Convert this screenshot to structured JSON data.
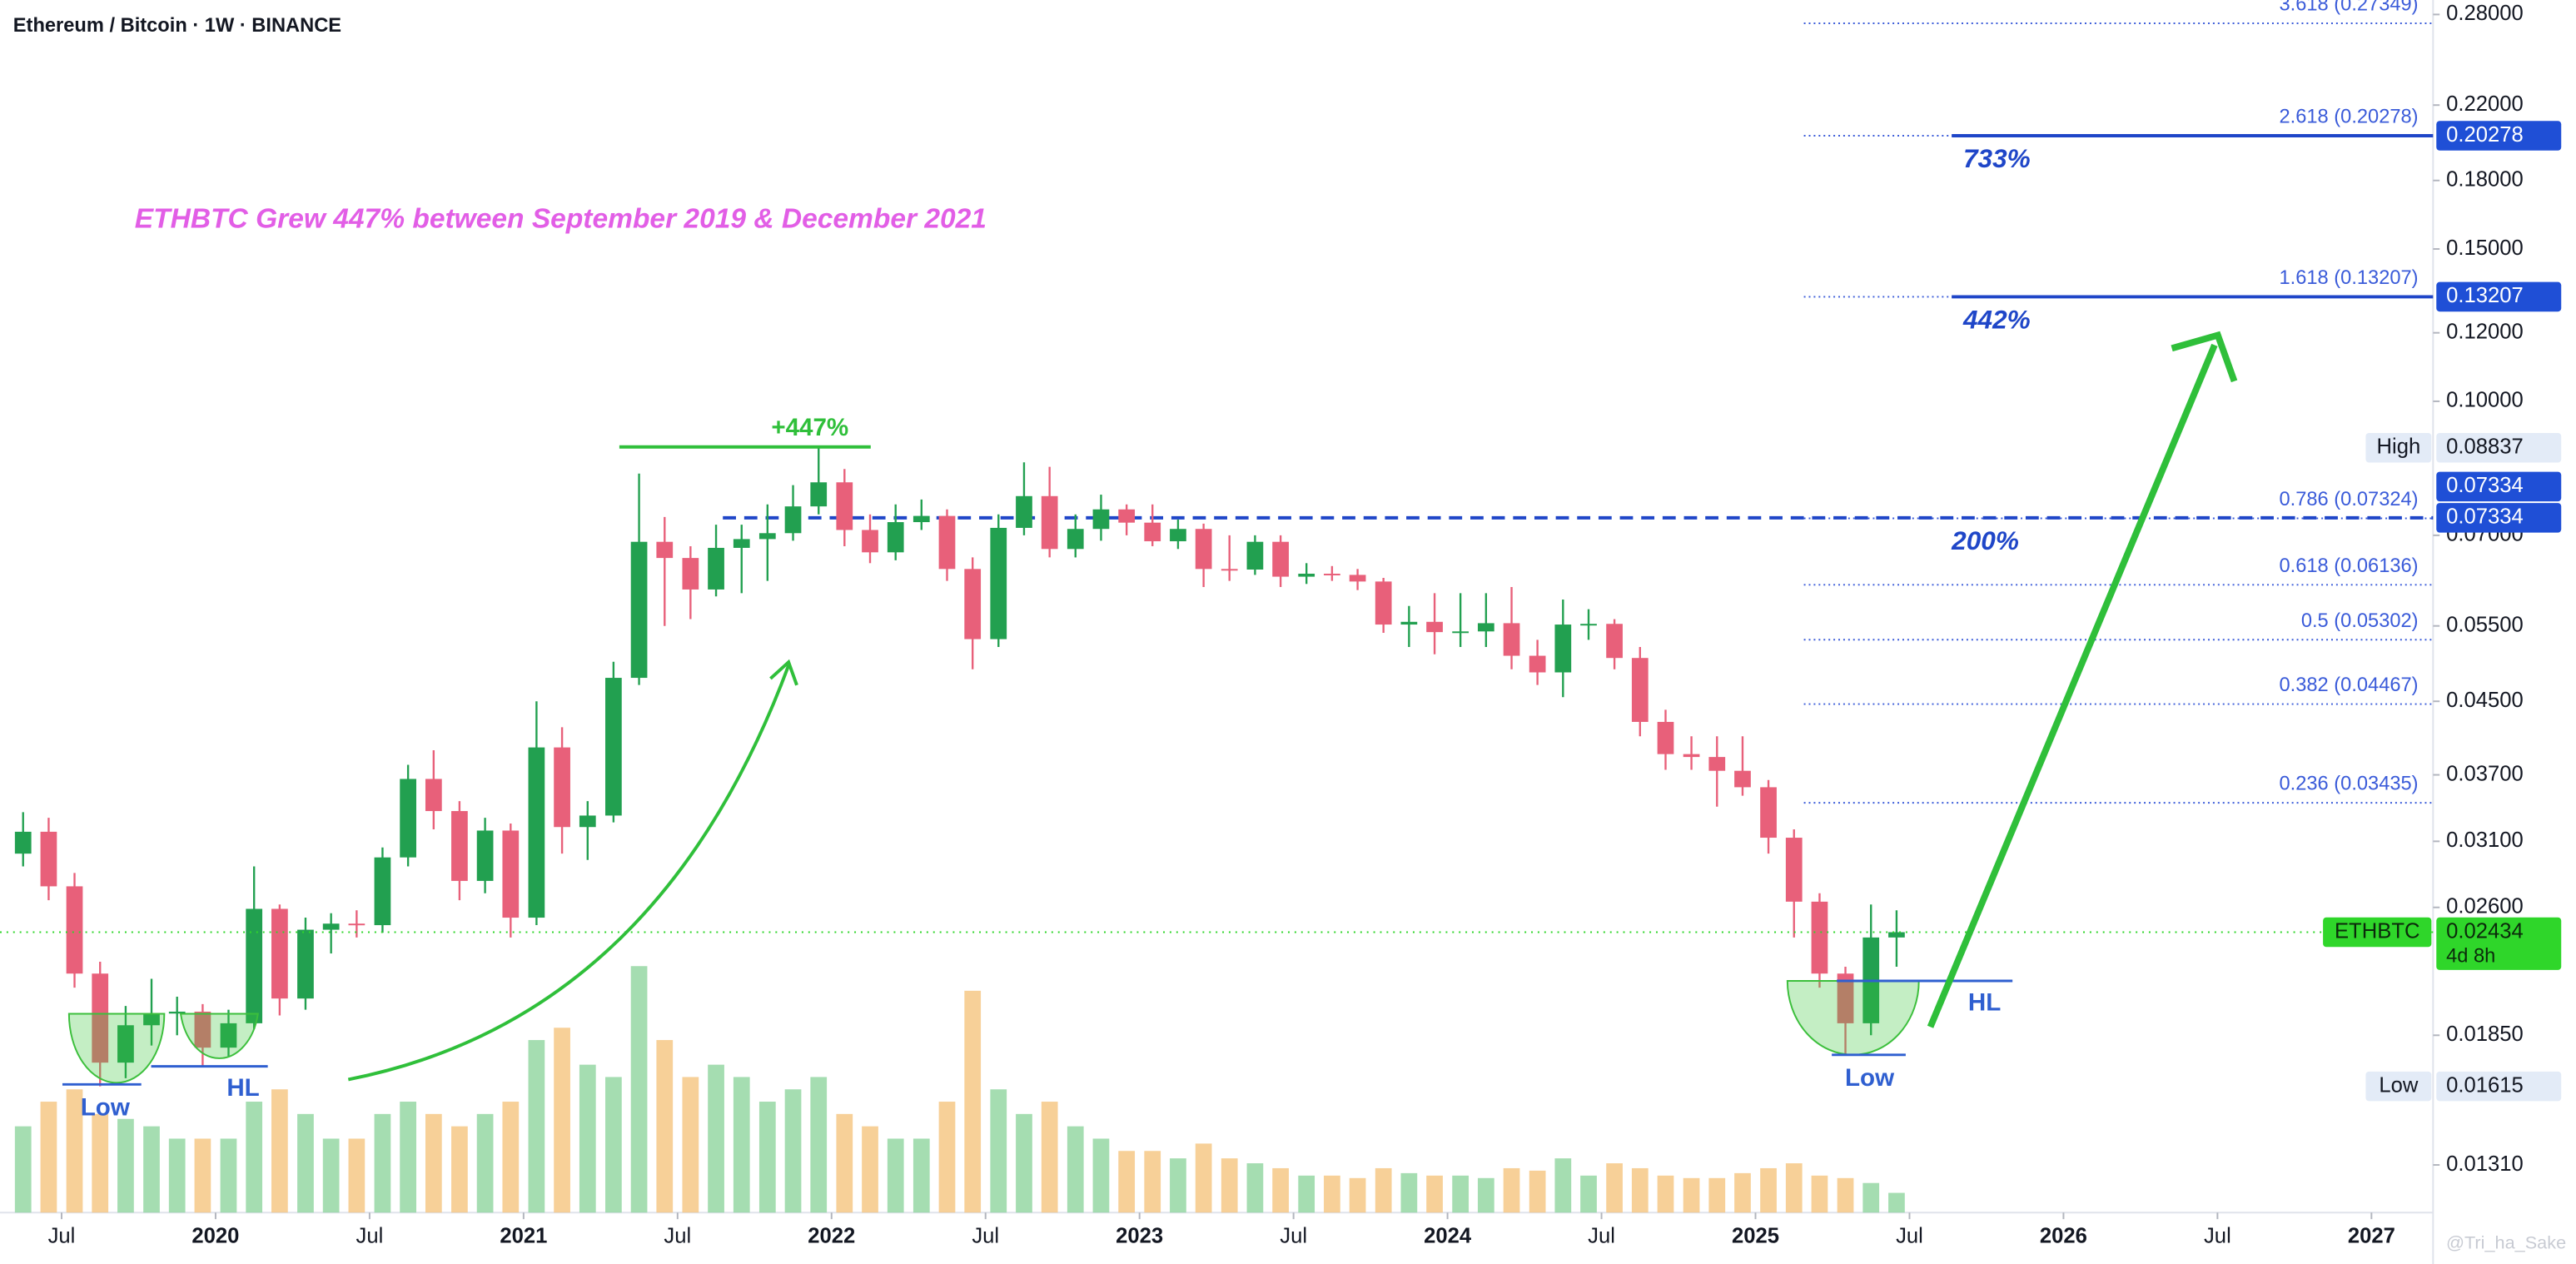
{
  "chart_data": {
    "type": "candlestick",
    "title": "Ethereum / Bitcoin · 1W · BINANCE",
    "log_scale": true,
    "up_color": "#22a050",
    "down_color": "#e8607a",
    "volume_up_color": "#8fd49e",
    "volume_down_color": "#f5c47e",
    "x": [
      2019.375,
      2019.458,
      2019.542,
      2019.625,
      2019.708,
      2019.792,
      2019.875,
      2019.958,
      2020.042,
      2020.125,
      2020.208,
      2020.292,
      2020.375,
      2020.458,
      2020.542,
      2020.625,
      2020.708,
      2020.792,
      2020.875,
      2020.958,
      2021.042,
      2021.125,
      2021.208,
      2021.292,
      2021.375,
      2021.458,
      2021.542,
      2021.625,
      2021.708,
      2021.792,
      2021.875,
      2021.958,
      2022.042,
      2022.125,
      2022.208,
      2022.292,
      2022.375,
      2022.458,
      2022.542,
      2022.625,
      2022.708,
      2022.792,
      2022.875,
      2022.958,
      2023.042,
      2023.125,
      2023.208,
      2023.292,
      2023.375,
      2023.458,
      2023.542,
      2023.625,
      2023.708,
      2023.792,
      2023.875,
      2023.958,
      2024.042,
      2024.125,
      2024.208,
      2024.292,
      2024.375,
      2024.458,
      2024.542,
      2024.625,
      2024.708,
      2024.792,
      2024.875,
      2024.958,
      2025.042,
      2025.125,
      2025.208,
      2025.292,
      2025.375,
      2025.458
    ],
    "open": [
      0.03,
      0.0318,
      0.0275,
      0.0218,
      0.0172,
      0.019,
      0.0196,
      0.0197,
      0.0179,
      0.0191,
      0.0259,
      0.0204,
      0.0245,
      0.0249,
      0.0248,
      0.0297,
      0.0366,
      0.0336,
      0.0279,
      0.0319,
      0.0253,
      0.0398,
      0.0322,
      0.0332,
      0.0479,
      0.0688,
      0.0659,
      0.0606,
      0.0677,
      0.0693,
      0.0704,
      0.0756,
      0.0806,
      0.071,
      0.0669,
      0.0725,
      0.0737,
      0.064,
      0.0531,
      0.0714,
      0.0777,
      0.0675,
      0.0712,
      0.075,
      0.0724,
      0.0689,
      0.0712,
      0.064,
      0.0639,
      0.0688,
      0.0627,
      0.0632,
      0.063,
      0.0619,
      0.0552,
      0.0556,
      0.0541,
      0.0542,
      0.0554,
      0.0508,
      0.0486,
      0.0552,
      0.0553,
      0.0505,
      0.0426,
      0.0391,
      0.0388,
      0.0374,
      0.0358,
      0.0313,
      0.0264,
      0.0218,
      0.0191,
      0.024
    ],
    "high": [
      0.0335,
      0.033,
      0.0285,
      0.0225,
      0.02,
      0.0215,
      0.0205,
      0.0201,
      0.0198,
      0.029,
      0.0262,
      0.0253,
      0.0256,
      0.0258,
      0.0305,
      0.038,
      0.0395,
      0.0345,
      0.033,
      0.0325,
      0.045,
      0.042,
      0.0345,
      0.05,
      0.0825,
      0.0735,
      0.068,
      0.072,
      0.072,
      0.076,
      0.08,
      0.08837,
      0.0835,
      0.074,
      0.076,
      0.077,
      0.075,
      0.066,
      0.074,
      0.085,
      0.084,
      0.074,
      0.078,
      0.076,
      0.076,
      0.073,
      0.0722,
      0.07,
      0.07,
      0.07,
      0.065,
      0.0645,
      0.064,
      0.0625,
      0.058,
      0.06,
      0.06,
      0.06,
      0.061,
      0.053,
      0.059,
      0.0575,
      0.056,
      0.052,
      0.044,
      0.041,
      0.041,
      0.041,
      0.0365,
      0.032,
      0.027,
      0.0222,
      0.0262,
      0.0258
    ],
    "low": [
      0.029,
      0.0265,
      0.021,
      0.01615,
      0.0165,
      0.018,
      0.0185,
      0.017,
      0.0175,
      0.0188,
      0.0195,
      0.0198,
      0.023,
      0.024,
      0.0243,
      0.029,
      0.032,
      0.0265,
      0.027,
      0.024,
      0.0248,
      0.03,
      0.0295,
      0.0326,
      0.047,
      0.055,
      0.056,
      0.0595,
      0.06,
      0.062,
      0.069,
      0.074,
      0.068,
      0.065,
      0.0655,
      0.071,
      0.062,
      0.049,
      0.052,
      0.07,
      0.066,
      0.066,
      0.069,
      0.07,
      0.068,
      0.0675,
      0.061,
      0.062,
      0.063,
      0.061,
      0.0615,
      0.062,
      0.0605,
      0.054,
      0.052,
      0.051,
      0.052,
      0.052,
      0.049,
      0.047,
      0.0455,
      0.053,
      0.049,
      0.041,
      0.0375,
      0.0375,
      0.034,
      0.035,
      0.03,
      0.024,
      0.021,
      0.0176,
      0.0185,
      0.0222
    ],
    "close": [
      0.0318,
      0.0275,
      0.0218,
      0.0172,
      0.019,
      0.0196,
      0.0197,
      0.0179,
      0.0191,
      0.0259,
      0.0204,
      0.0245,
      0.0249,
      0.0248,
      0.0297,
      0.0366,
      0.0336,
      0.0279,
      0.0319,
      0.0253,
      0.0398,
      0.0322,
      0.0332,
      0.0479,
      0.0688,
      0.0659,
      0.0606,
      0.0677,
      0.0693,
      0.0704,
      0.0756,
      0.0806,
      0.071,
      0.0669,
      0.0725,
      0.0737,
      0.064,
      0.0531,
      0.0714,
      0.0777,
      0.0675,
      0.0712,
      0.075,
      0.0724,
      0.0689,
      0.0712,
      0.064,
      0.0639,
      0.0688,
      0.0627,
      0.0632,
      0.063,
      0.0619,
      0.0552,
      0.0556,
      0.0541,
      0.0542,
      0.0554,
      0.0508,
      0.0486,
      0.0552,
      0.0553,
      0.0505,
      0.0426,
      0.0391,
      0.0388,
      0.0374,
      0.0358,
      0.0313,
      0.0264,
      0.0218,
      0.0191,
      0.024,
      0.02434
    ],
    "volume": [
      35,
      45,
      50,
      40,
      38,
      35,
      30,
      30,
      30,
      45,
      50,
      40,
      30,
      30,
      40,
      45,
      40,
      35,
      40,
      45,
      70,
      75,
      60,
      55,
      100,
      70,
      55,
      60,
      55,
      45,
      50,
      55,
      40,
      35,
      30,
      30,
      45,
      90,
      50,
      40,
      45,
      35,
      30,
      25,
      25,
      22,
      28,
      22,
      20,
      18,
      15,
      15,
      14,
      18,
      16,
      15,
      15,
      14,
      18,
      17,
      22,
      15,
      20,
      18,
      15,
      14,
      14,
      16,
      18,
      20,
      15,
      14,
      12,
      8
    ],
    "xlim": [
      2019.3,
      2027.2
    ],
    "ylim": [
      0.01154,
      0.291
    ],
    "xticks": [
      {
        "value": 2019.5,
        "label": "Jul"
      },
      2020,
      {
        "value": 2020.5,
        "label": "Jul"
      },
      2021,
      {
        "value": 2021.5,
        "label": "Jul"
      },
      2022,
      {
        "value": 2022.5,
        "label": "Jul"
      },
      2023,
      {
        "value": 2023.5,
        "label": "Jul"
      },
      2024,
      {
        "value": 2024.5,
        "label": "Jul"
      },
      2025,
      {
        "value": 2025.5,
        "label": "Jul"
      },
      2026,
      {
        "value": 2026.5,
        "label": "Jul"
      },
      2027
    ],
    "yticks": [
      {
        "value": 0.28,
        "label": "0.28000"
      },
      {
        "value": 0.22,
        "label": "0.22000"
      },
      {
        "value": 0.18,
        "label": "0.18000"
      },
      {
        "value": 0.15,
        "label": "0.15000"
      },
      {
        "value": 0.12,
        "label": "0.12000"
      },
      {
        "value": 0.1,
        "label": "0.10000"
      },
      {
        "value": 0.07,
        "label": "0.07000"
      },
      {
        "value": 0.055,
        "label": "0.05500"
      },
      {
        "value": 0.045,
        "label": "0.04500"
      },
      {
        "value": 0.037,
        "label": "0.03700"
      },
      {
        "value": 0.031,
        "label": "0.03100"
      },
      {
        "value": 0.026,
        "label": "0.02600"
      },
      {
        "value": 0.0185,
        "label": "0.01850"
      },
      {
        "value": 0.0131,
        "label": "0.01310"
      }
    ],
    "fib_levels": [
      {
        "value": 0.27349,
        "label": "3.618 (0.27349)"
      },
      {
        "value": 0.20278,
        "label": "2.618 (0.20278)"
      },
      {
        "value": 0.13207,
        "label": "1.618 (0.13207)"
      },
      {
        "value": 0.07324,
        "label": "0.786 (0.07324)"
      },
      {
        "value": 0.06136,
        "label": "0.618 (0.06136)"
      },
      {
        "value": 0.05302,
        "label": "0.5 (0.05302)"
      },
      {
        "value": 0.04467,
        "label": "0.382 (0.04467)"
      },
      {
        "value": 0.03435,
        "label": "0.236 (0.03435)"
      }
    ],
    "fib_color": "#3a5bd9",
    "targets": [
      {
        "value": 0.20278,
        "label": "733%"
      },
      {
        "value": 0.13207,
        "label": "442%"
      },
      {
        "value": 0.07334,
        "label": "200%"
      }
    ],
    "target_color": "#1f46c8",
    "price_tags": [
      {
        "value": 0.20278,
        "color": "#1f4fd6",
        "text_color": "#ffffff"
      },
      {
        "value": 0.13207,
        "color": "#1f4fd6",
        "text_color": "#ffffff"
      },
      {
        "value": 0.07334,
        "color": "#1f4fd6",
        "text_color": "#ffffff"
      },
      {
        "value": 0.07334,
        "color": "#1f4fd6",
        "text_color": "#ffffff"
      },
      {
        "name": "High",
        "value": 0.08837,
        "color": "#e3ebf7",
        "text_color": "#131722"
      },
      {
        "name": "Low",
        "value": 0.01615,
        "color": "#e3ebf7",
        "text_color": "#131722"
      },
      {
        "name": "ETHBTC",
        "value": 0.02434,
        "countdown": "4d 8h",
        "color": "#2fd62a",
        "text_color": "#0b2a0b"
      }
    ],
    "annotations": {
      "headline": "ETHBTC Grew 447% between September 2019 & December 2021",
      "gain": "+447%",
      "low_1": "Low",
      "hl_1": "HL",
      "low_2": "Low",
      "hl_2": "HL"
    },
    "watermark": "@Tri_ha_Sake"
  }
}
